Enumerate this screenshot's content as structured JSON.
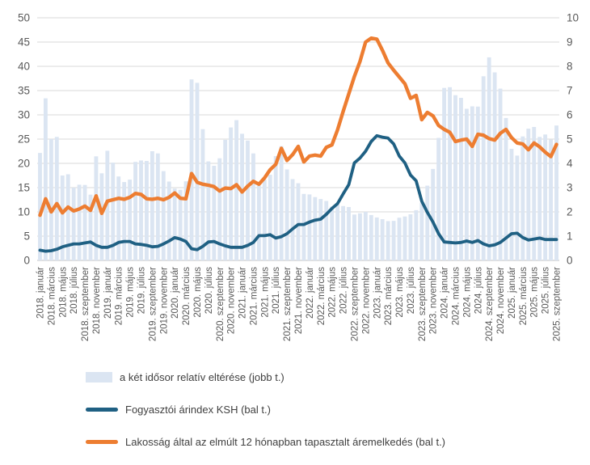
{
  "chart_data": {
    "type": "combo",
    "title": "",
    "grid": true,
    "legend_position": "bottom",
    "colors": {
      "bar_fill": "#DBE5F2",
      "ksh_line": "#1F6083",
      "perceived_line": "#ED7D31",
      "gridline": "#D9D9D9",
      "axis_line": "#BFBFBF",
      "axis_text": "#595959",
      "legend_text": "#404040"
    },
    "left_axis": {
      "min": 0,
      "max": 50,
      "step": 5,
      "ticks": [
        "0",
        "5",
        "10",
        "15",
        "20",
        "25",
        "30",
        "35",
        "40",
        "45",
        "50"
      ]
    },
    "right_axis": {
      "min": 0,
      "max": 10,
      "step": 1,
      "ticks": [
        "0",
        "1",
        "2",
        "3",
        "4",
        "5",
        "6",
        "7",
        "8",
        "9",
        "10"
      ]
    },
    "x_tick_every": 2,
    "x_tick_labels": [
      "2018. január",
      "2018. március",
      "2018. május",
      "2018. július",
      "2018. szeptember",
      "2018. november",
      "2019. január",
      "2019. március",
      "2019. május",
      "2019. július",
      "2019. szeptember",
      "2019. november",
      "2020. január",
      "2020. március",
      "2020. május",
      "2020. július",
      "2020. szeptember",
      "2020. november",
      "2021. január",
      "2021. március",
      "2021. május",
      "2021. július",
      "2021. szeptember",
      "2021. november",
      "2022. január",
      "2022. március",
      "2022. május",
      "2022. július",
      "2022. szeptember",
      "2022. november",
      "2023. január",
      "2023. március",
      "2023. május",
      "2023. július",
      "2023. szeptember",
      "2023. november",
      "2024. január",
      "2024. március",
      "2024. május",
      "2024. július",
      "2024. szeptember",
      "2024. november",
      "2025. január",
      "2025. március",
      "2025. május",
      "2025. július",
      "2025. szeptember"
    ],
    "series": [
      {
        "name": "a két idősor relatív eltérése (jobb t.)",
        "type": "bar",
        "axis": "right",
        "color": "#DBE5F2",
        "values": [
          4.43,
          6.68,
          5.0,
          5.09,
          3.5,
          3.55,
          3.0,
          3.12,
          3.11,
          2.71,
          4.29,
          3.59,
          4.52,
          4.03,
          3.46,
          3.23,
          3.33,
          4.06,
          4.12,
          4.1,
          4.5,
          4.41,
          3.68,
          3.25,
          2.96,
          2.91,
          3.26,
          7.46,
          7.32,
          5.41,
          4.08,
          3.9,
          4.21,
          4.97,
          5.48,
          5.78,
          5.22,
          4.94,
          4.41,
          3.08,
          3.33,
          3.53,
          4.3,
          4.71,
          3.75,
          3.35,
          3.18,
          2.74,
          2.72,
          2.61,
          2.53,
          2.45,
          2.22,
          2.3,
          2.24,
          2.2,
          1.89,
          1.94,
          2.0,
          1.87,
          1.77,
          1.7,
          1.62,
          1.63,
          1.76,
          1.81,
          1.9,
          2.07,
          2.38,
          3.08,
          3.77,
          5.05,
          7.11,
          7.14,
          6.81,
          6.7,
          6.25,
          6.35,
          6.34,
          7.59,
          8.37,
          7.75,
          7.08,
          5.87,
          4.6,
          4.32,
          5.11,
          5.43,
          5.5,
          5.09,
          5.19,
          4.98,
          5.56
        ]
      },
      {
        "name": "Fogyasztói árindex KSH (bal t.)",
        "type": "line",
        "axis": "left",
        "color": "#1F6083",
        "width": 3.8,
        "values": [
          2.1,
          1.9,
          2.0,
          2.3,
          2.8,
          3.1,
          3.4,
          3.4,
          3.6,
          3.8,
          3.1,
          2.7,
          2.7,
          3.1,
          3.7,
          3.9,
          3.9,
          3.4,
          3.3,
          3.1,
          2.8,
          2.9,
          3.4,
          4.0,
          4.7,
          4.4,
          3.9,
          2.4,
          2.2,
          2.9,
          3.8,
          3.9,
          3.4,
          3.0,
          2.7,
          2.7,
          2.7,
          3.1,
          3.7,
          5.1,
          5.1,
          5.3,
          4.6,
          4.9,
          5.5,
          6.5,
          7.4,
          7.4,
          7.9,
          8.3,
          8.5,
          9.5,
          10.7,
          11.7,
          13.7,
          15.6,
          20.1,
          21.1,
          22.5,
          24.5,
          25.7,
          25.4,
          25.2,
          24.0,
          21.5,
          20.1,
          17.6,
          16.4,
          12.2,
          9.9,
          7.9,
          5.5,
          3.8,
          3.7,
          3.6,
          3.7,
          4.0,
          3.7,
          4.1,
          3.4,
          3.0,
          3.2,
          3.7,
          4.6,
          5.5,
          5.6,
          4.7,
          4.2,
          4.4,
          4.6,
          4.3,
          4.3,
          4.3
        ]
      },
      {
        "name": "Lakosság által az elmúlt 12 hónapban tapasztalt áremelkedés (bal t.)",
        "type": "line",
        "axis": "left",
        "color": "#ED7D31",
        "width": 4.4,
        "values": [
          9.3,
          12.7,
          10.0,
          11.7,
          9.8,
          11.0,
          10.2,
          10.6,
          11.2,
          10.3,
          13.3,
          9.7,
          12.2,
          12.5,
          12.8,
          12.6,
          13.0,
          13.8,
          13.6,
          12.7,
          12.6,
          12.8,
          12.5,
          13.0,
          13.9,
          12.8,
          12.7,
          17.9,
          16.1,
          15.7,
          15.5,
          15.2,
          14.3,
          14.9,
          14.8,
          15.6,
          14.1,
          15.3,
          16.3,
          15.7,
          17.0,
          18.7,
          19.8,
          23.1,
          20.6,
          21.8,
          23.5,
          20.3,
          21.5,
          21.7,
          21.5,
          23.3,
          23.8,
          26.9,
          30.7,
          34.3,
          37.9,
          41.0,
          45.0,
          45.8,
          45.6,
          43.3,
          40.7,
          39.2,
          37.8,
          36.4,
          33.4,
          34.0,
          29.0,
          30.5,
          29.8,
          27.8,
          27.0,
          26.4,
          24.5,
          24.8,
          25.0,
          23.5,
          26.0,
          25.8,
          25.1,
          24.8,
          26.2,
          27.0,
          25.3,
          24.2,
          24.0,
          22.8,
          24.2,
          23.4,
          22.3,
          21.4,
          23.9
        ]
      }
    ]
  }
}
